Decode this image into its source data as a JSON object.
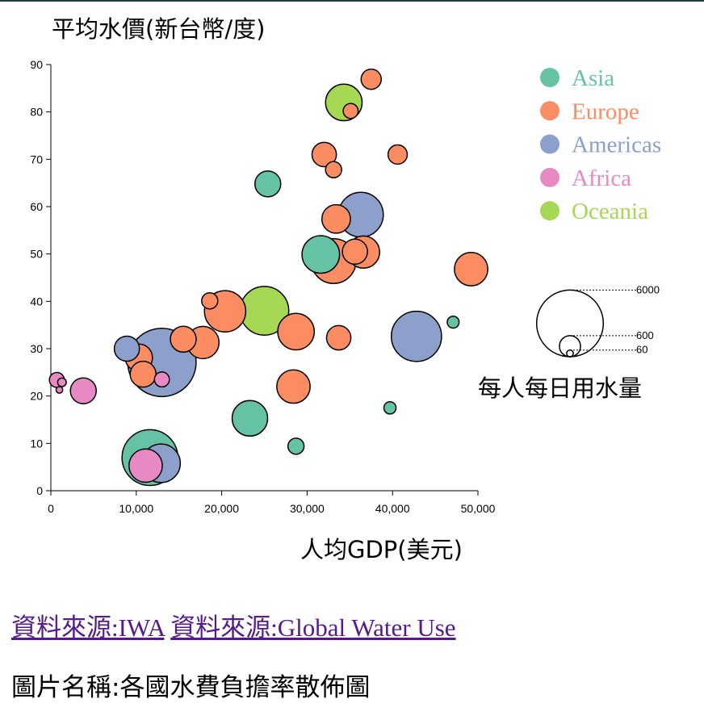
{
  "chart_data": {
    "type": "scatter",
    "ylabel": "平均水價(新台幣/度)",
    "xlabel": "人均GDP(美元)",
    "xlim": [
      0,
      50000
    ],
    "ylim": [
      0,
      90
    ],
    "x_ticks": [
      "0",
      "10,000",
      "20,000",
      "30,000",
      "40,000",
      "50,000"
    ],
    "y_ticks": [
      "0",
      "10",
      "20",
      "30",
      "40",
      "50",
      "60",
      "70",
      "80",
      "90"
    ],
    "size_legend": {
      "title": "每人每日用水量",
      "values": [
        "6000",
        "600",
        "60"
      ]
    },
    "legend_position": "top-right",
    "series": [
      {
        "name": "Asia",
        "color": "#66c2a5",
        "points": [
          {
            "x": 11600,
            "y": 7.0,
            "size": 4200
          },
          {
            "x": 23300,
            "y": 15.3,
            "size": 1700
          },
          {
            "x": 25400,
            "y": 64.8,
            "size": 900
          },
          {
            "x": 28700,
            "y": 9.4,
            "size": 350
          },
          {
            "x": 31600,
            "y": 49.9,
            "size": 1900
          },
          {
            "x": 39700,
            "y": 17.5,
            "size": 200
          },
          {
            "x": 47100,
            "y": 35.6,
            "size": 190
          }
        ]
      },
      {
        "name": "Europe",
        "color": "#fc8d62",
        "points": [
          {
            "x": 10300,
            "y": 28.1,
            "size": 1000
          },
          {
            "x": 10800,
            "y": 24.6,
            "size": 900
          },
          {
            "x": 15500,
            "y": 32.0,
            "size": 900
          },
          {
            "x": 17800,
            "y": 31.3,
            "size": 1400
          },
          {
            "x": 18600,
            "y": 40.1,
            "size": 350
          },
          {
            "x": 20400,
            "y": 37.9,
            "size": 2300
          },
          {
            "x": 28400,
            "y": 22.0,
            "size": 1500
          },
          {
            "x": 28700,
            "y": 33.6,
            "size": 1800
          },
          {
            "x": 32000,
            "y": 71.0,
            "size": 800
          },
          {
            "x": 33100,
            "y": 48.5,
            "size": 2700
          },
          {
            "x": 33100,
            "y": 67.8,
            "size": 350
          },
          {
            "x": 33400,
            "y": 57.4,
            "size": 1100
          },
          {
            "x": 33700,
            "y": 32.3,
            "size": 800
          },
          {
            "x": 35100,
            "y": 80.2,
            "size": 300
          },
          {
            "x": 35600,
            "y": 50.5,
            "size": 850
          },
          {
            "x": 36600,
            "y": 50.4,
            "size": 1400
          },
          {
            "x": 37500,
            "y": 86.9,
            "size": 550
          },
          {
            "x": 40600,
            "y": 71.0,
            "size": 500
          },
          {
            "x": 49200,
            "y": 46.8,
            "size": 1500
          }
        ]
      },
      {
        "name": "Americas",
        "color": "#8da0cb",
        "points": [
          {
            "x": 8900,
            "y": 30.0,
            "size": 850
          },
          {
            "x": 12900,
            "y": 5.8,
            "size": 2000
          },
          {
            "x": 13000,
            "y": 27.1,
            "size": 6300
          },
          {
            "x": 36300,
            "y": 58.3,
            "size": 2700
          },
          {
            "x": 42800,
            "y": 32.6,
            "size": 3400
          }
        ]
      },
      {
        "name": "Africa",
        "color": "#e78ac3",
        "points": [
          {
            "x": 700,
            "y": 23.4,
            "size": 300
          },
          {
            "x": 1300,
            "y": 22.9,
            "size": 100
          },
          {
            "x": 1000,
            "y": 21.3,
            "size": 60
          },
          {
            "x": 3800,
            "y": 21.1,
            "size": 900
          },
          {
            "x": 11100,
            "y": 5.3,
            "size": 1500
          },
          {
            "x": 13000,
            "y": 23.5,
            "size": 300
          }
        ]
      },
      {
        "name": "Oceania",
        "color": "#a6d854",
        "points": [
          {
            "x": 25000,
            "y": 38.0,
            "size": 3200
          },
          {
            "x": 34300,
            "y": 82.0,
            "size": 1800
          }
        ]
      }
    ]
  },
  "links": {
    "iwa": "資料來源:IWA",
    "global_water": "資料來源:Global Water Use"
  },
  "caption": "圖片名稱:各國水費負擔率散佈圖"
}
